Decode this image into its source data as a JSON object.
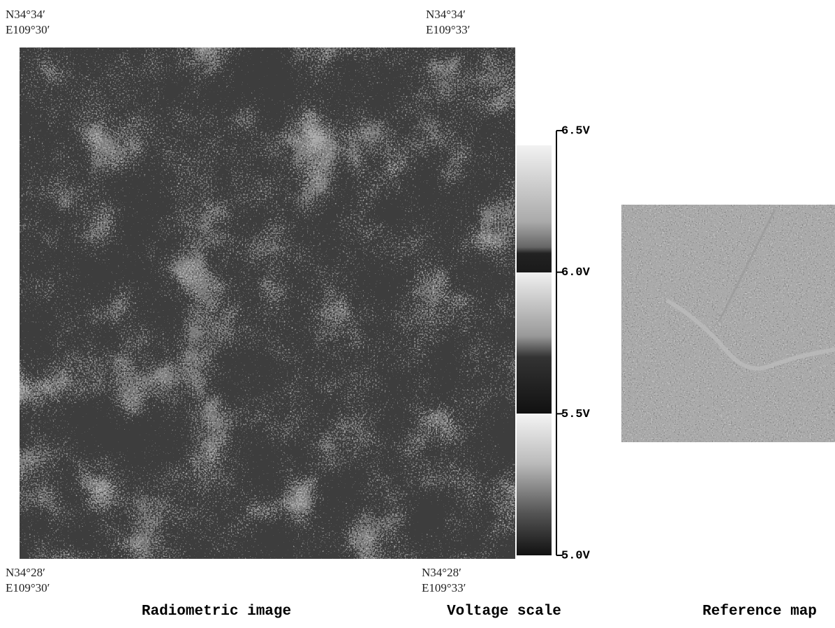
{
  "radiometric_image": {
    "caption": "Radiometric image",
    "corners": {
      "top_left": [
        "N34°34′",
        "E109°30′"
      ],
      "top_right": [
        "N34°34′",
        "E109°33′"
      ],
      "bottom_left": [
        "N34°28′",
        "E109°30′"
      ],
      "bottom_right": [
        "N34°28′",
        "E109°33′"
      ]
    }
  },
  "voltage_scale": {
    "caption": "Voltage scale",
    "ticks": [
      {
        "value": 6.5,
        "label": "6.5V"
      },
      {
        "value": 6.0,
        "label": "6.0V"
      },
      {
        "value": 5.5,
        "label": "5.5V"
      },
      {
        "value": 5.0,
        "label": "5.0V"
      }
    ]
  },
  "reference_map": {
    "caption": "Reference map"
  }
}
